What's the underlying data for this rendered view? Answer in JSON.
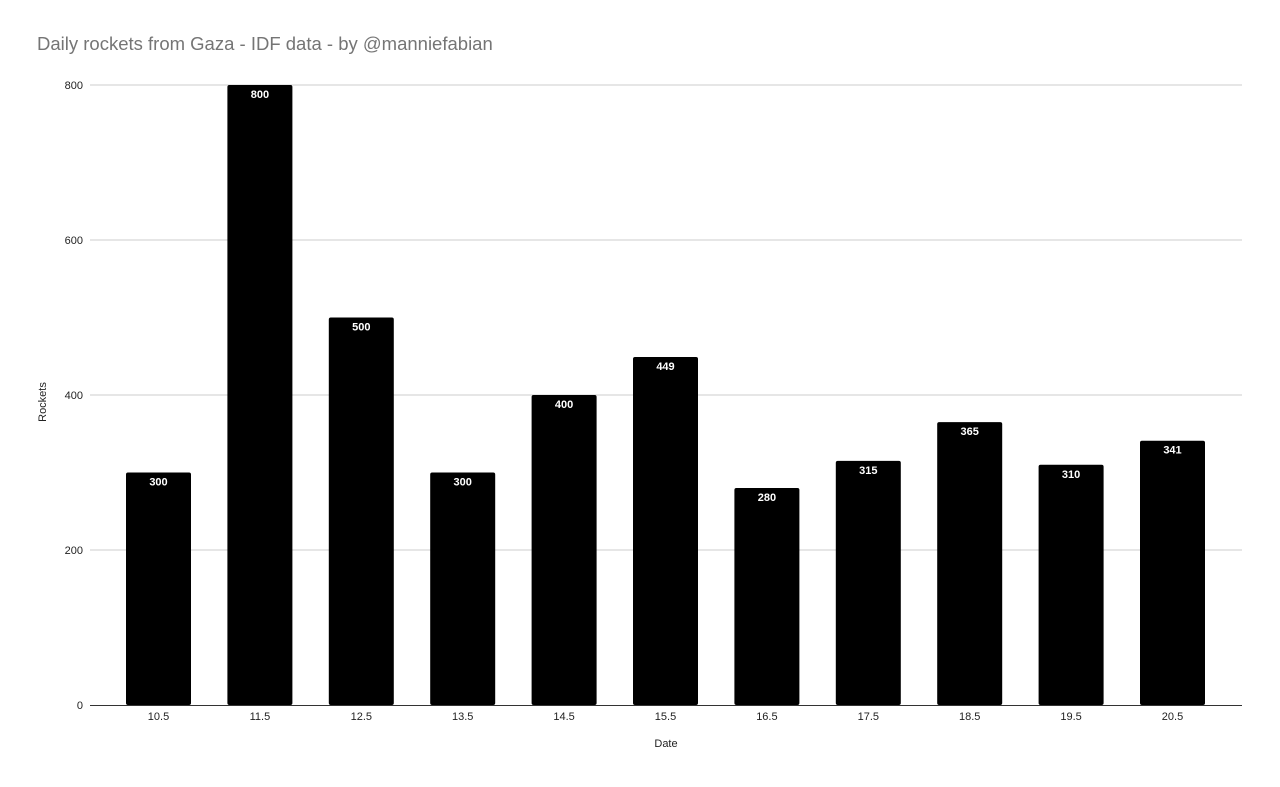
{
  "chart_data": {
    "type": "bar",
    "title": "Daily rockets from Gaza - IDF data - by @manniefabian",
    "xlabel": "Date",
    "ylabel": "Rockets",
    "categories": [
      "10.5",
      "11.5",
      "12.5",
      "13.5",
      "14.5",
      "15.5",
      "16.5",
      "17.5",
      "18.5",
      "19.5",
      "20.5"
    ],
    "values": [
      300,
      800,
      500,
      300,
      400,
      449,
      280,
      315,
      365,
      310,
      341
    ],
    "ylim": [
      0,
      800
    ],
    "yticks": [
      0,
      200,
      400,
      600,
      800
    ],
    "grid": true,
    "legend": "none",
    "bar_color": "#000000",
    "gridline_color": "#cccccc",
    "data_label_color": "#ffffff"
  }
}
